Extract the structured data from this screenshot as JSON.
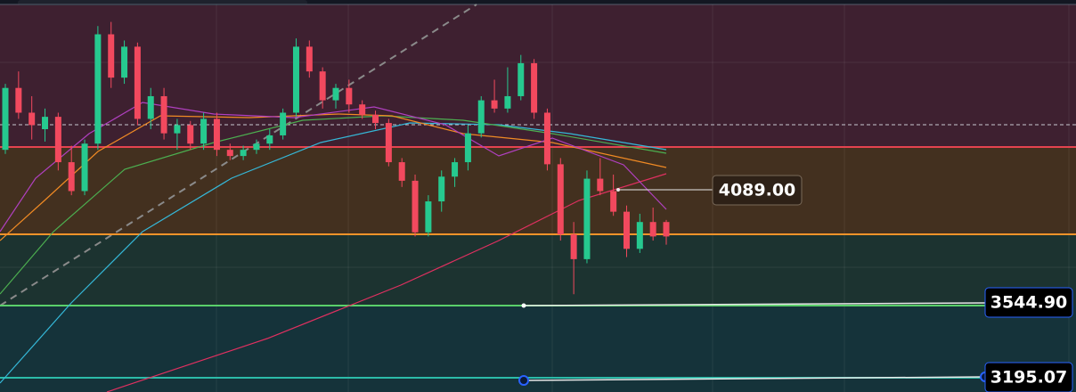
{
  "price_labels": [
    "4089.00",
    "3544.90",
    "3195.07"
  ],
  "candles": [
    [
      4300,
      4620,
      4280,
      4600
    ],
    [
      4600,
      4680,
      4450,
      4480
    ],
    [
      4480,
      4560,
      4350,
      4420
    ],
    [
      4400,
      4500,
      4340,
      4460
    ],
    [
      4460,
      4480,
      4200,
      4240
    ],
    [
      4240,
      4320,
      4080,
      4100
    ],
    [
      4100,
      4350,
      4080,
      4330
    ],
    [
      4330,
      4900,
      4300,
      4860
    ],
    [
      4860,
      4920,
      4600,
      4650
    ],
    [
      4650,
      4830,
      4620,
      4800
    ],
    [
      4800,
      4820,
      4420,
      4450
    ],
    [
      4450,
      4600,
      4400,
      4560
    ],
    [
      4560,
      4600,
      4350,
      4380
    ],
    [
      4380,
      4450,
      4300,
      4420
    ],
    [
      4420,
      4440,
      4300,
      4330
    ],
    [
      4330,
      4480,
      4300,
      4450
    ],
    [
      4450,
      4480,
      4270,
      4300
    ],
    [
      4300,
      4330,
      4250,
      4270
    ],
    [
      4270,
      4320,
      4250,
      4300
    ],
    [
      4300,
      4350,
      4280,
      4330
    ],
    [
      4330,
      4400,
      4300,
      4370
    ],
    [
      4370,
      4500,
      4350,
      4480
    ],
    [
      4480,
      4840,
      4460,
      4800
    ],
    [
      4800,
      4830,
      4650,
      4680
    ],
    [
      4680,
      4700,
      4500,
      4540
    ],
    [
      4540,
      4620,
      4500,
      4600
    ],
    [
      4600,
      4640,
      4480,
      4520
    ],
    [
      4520,
      4540,
      4450,
      4470
    ],
    [
      4470,
      4490,
      4400,
      4430
    ],
    [
      4430,
      4450,
      4220,
      4240
    ],
    [
      4240,
      4260,
      4120,
      4150
    ],
    [
      4150,
      4180,
      3880,
      3900
    ],
    [
      3900,
      4080,
      3880,
      4050
    ],
    [
      4050,
      4200,
      4000,
      4170
    ],
    [
      4170,
      4260,
      4120,
      4240
    ],
    [
      4240,
      4420,
      4200,
      4380
    ],
    [
      4380,
      4560,
      4360,
      4540
    ],
    [
      4540,
      4640,
      4480,
      4500
    ],
    [
      4500,
      4700,
      4480,
      4560
    ],
    [
      4560,
      4760,
      4540,
      4720
    ],
    [
      4720,
      4740,
      4450,
      4480
    ],
    [
      4480,
      4500,
      4200,
      4230
    ],
    [
      4230,
      4260,
      3860,
      3890
    ],
    [
      3890,
      3950,
      3600,
      3770
    ],
    [
      3770,
      4200,
      3750,
      4160
    ],
    [
      4160,
      4260,
      4080,
      4100
    ],
    [
      4100,
      4180,
      3980,
      4000
    ],
    [
      4000,
      4030,
      3780,
      3820
    ],
    [
      3820,
      3990,
      3800,
      3950
    ],
    [
      3950,
      4020,
      3860,
      3880
    ],
    [
      3950,
      3960,
      3840,
      3880
    ]
  ]
}
